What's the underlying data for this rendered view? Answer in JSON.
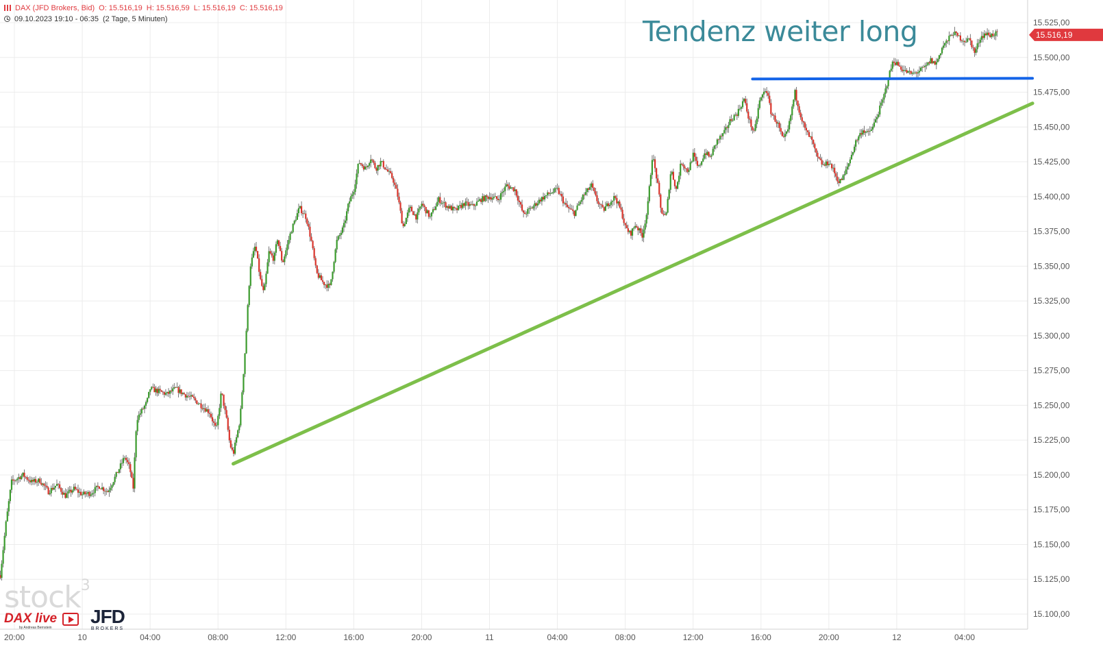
{
  "header": {
    "symbol": "DAX (JFD Brokers, Bid)",
    "open": "O: 15.516,19",
    "high": "H: 15.516,59",
    "low": "L: 15.516,19",
    "close": "C: 15.516,19",
    "range": "09.10.2023 19:10 - 06:35",
    "interval": "(2 Tage, 5 Minuten)"
  },
  "annotation": "Tendenz weiter long",
  "watermark": "stock",
  "watermark_sup": "3",
  "logos": {
    "dax_live": "DAX live",
    "dax_live_sub": "by Andreas Bernstein",
    "jfd": "JFD",
    "jfd_sub": "BROKERS"
  },
  "colors": {
    "up": "#3a9a2c",
    "down": "#d9342b",
    "trendline": "#7dbf4a",
    "resistance": "#1565e8",
    "price_badge": "#e0393e",
    "grid": "#ececec",
    "axis_text": "#555555"
  },
  "chart_data": {
    "type": "candlestick",
    "title": "DAX (JFD Brokers, Bid)",
    "interval": "5 Minuten",
    "x_tick_labels": [
      "20:00",
      "10",
      "04:00",
      "08:00",
      "12:00",
      "16:00",
      "20:00",
      "11",
      "04:00",
      "08:00",
      "12:00",
      "16:00",
      "20:00",
      "12",
      "04:00"
    ],
    "x_ticks_hour": [
      20,
      24,
      28,
      32,
      36,
      40,
      44,
      48,
      52,
      56,
      60,
      64,
      68,
      72,
      76
    ],
    "y_tick_labels": [
      "15.100,00",
      "15.125,00",
      "15.150,00",
      "15.175,00",
      "15.200,00",
      "15.225,00",
      "15.250,00",
      "15.275,00",
      "15.300,00",
      "15.325,00",
      "15.350,00",
      "15.375,00",
      "15.400,00",
      "15.425,00",
      "15.450,00",
      "15.475,00",
      "15.500,00",
      "15.525,00"
    ],
    "y_ticks": [
      15100,
      15125,
      15150,
      15175,
      15200,
      15225,
      15250,
      15275,
      15300,
      15325,
      15350,
      15375,
      15400,
      15425,
      15450,
      15475,
      15500,
      15525
    ],
    "ylim": [
      15100,
      15535
    ],
    "x_range_hours": [
      19.17,
      80.0
    ],
    "last_price": 15516.19,
    "last_price_label": "15.516,19",
    "price_path": [
      [
        19.17,
        15128
      ],
      [
        19.5,
        15165
      ],
      [
        19.83,
        15195
      ],
      [
        20.5,
        15200
      ],
      [
        21.0,
        15195
      ],
      [
        21.5,
        15196
      ],
      [
        22.0,
        15188
      ],
      [
        22.5,
        15193
      ],
      [
        23.0,
        15185
      ],
      [
        23.5,
        15190
      ],
      [
        24.0,
        15186
      ],
      [
        24.5,
        15187
      ],
      [
        25.0,
        15192
      ],
      [
        25.5,
        15188
      ],
      [
        26.0,
        15200
      ],
      [
        26.5,
        15213
      ],
      [
        26.8,
        15205
      ],
      [
        27.0,
        15190
      ],
      [
        27.2,
        15240
      ],
      [
        27.8,
        15252
      ],
      [
        28.0,
        15262
      ],
      [
        28.5,
        15260
      ],
      [
        29.0,
        15258
      ],
      [
        29.5,
        15262
      ],
      [
        30.0,
        15258
      ],
      [
        30.5,
        15255
      ],
      [
        31.0,
        15250
      ],
      [
        31.5,
        15245
      ],
      [
        31.9,
        15232
      ],
      [
        32.2,
        15260
      ],
      [
        32.5,
        15240
      ],
      [
        32.7,
        15222
      ],
      [
        32.9,
        15215
      ],
      [
        33.3,
        15240
      ],
      [
        33.6,
        15290
      ],
      [
        33.9,
        15350
      ],
      [
        34.2,
        15365
      ],
      [
        34.5,
        15340
      ],
      [
        34.7,
        15330
      ],
      [
        35.0,
        15360
      ],
      [
        35.3,
        15355
      ],
      [
        35.5,
        15370
      ],
      [
        35.8,
        15352
      ],
      [
        36.3,
        15375
      ],
      [
        36.8,
        15392
      ],
      [
        37.2,
        15385
      ],
      [
        37.5,
        15368
      ],
      [
        37.8,
        15345
      ],
      [
        38.2,
        15338
      ],
      [
        38.6,
        15335
      ],
      [
        39.0,
        15368
      ],
      [
        39.4,
        15378
      ],
      [
        39.7,
        15395
      ],
      [
        40.0,
        15405
      ],
      [
        40.3,
        15425
      ],
      [
        40.7,
        15420
      ],
      [
        41.0,
        15428
      ],
      [
        41.3,
        15420
      ],
      [
        41.6,
        15425
      ],
      [
        42.0,
        15418
      ],
      [
        42.3,
        15413
      ],
      [
        42.6,
        15400
      ],
      [
        42.9,
        15378
      ],
      [
        43.3,
        15392
      ],
      [
        43.7,
        15385
      ],
      [
        44.0,
        15395
      ],
      [
        44.5,
        15385
      ],
      [
        45.0,
        15398
      ],
      [
        45.5,
        15393
      ],
      [
        46.0,
        15390
      ],
      [
        46.5,
        15395
      ],
      [
        47.0,
        15393
      ],
      [
        47.5,
        15398
      ],
      [
        48.0,
        15400
      ],
      [
        48.5,
        15398
      ],
      [
        49.0,
        15408
      ],
      [
        49.5,
        15405
      ],
      [
        50.0,
        15387
      ],
      [
        50.5,
        15392
      ],
      [
        51.0,
        15398
      ],
      [
        51.5,
        15402
      ],
      [
        52.0,
        15405
      ],
      [
        52.5,
        15393
      ],
      [
        53.0,
        15388
      ],
      [
        53.5,
        15400
      ],
      [
        54.0,
        15408
      ],
      [
        54.3,
        15398
      ],
      [
        54.7,
        15390
      ],
      [
        55.0,
        15395
      ],
      [
        55.4,
        15400
      ],
      [
        55.8,
        15388
      ],
      [
        56.0,
        15378
      ],
      [
        56.3,
        15373
      ],
      [
        56.6,
        15380
      ],
      [
        57.0,
        15372
      ],
      [
        57.3,
        15390
      ],
      [
        57.6,
        15430
      ],
      [
        57.9,
        15410
      ],
      [
        58.1,
        15390
      ],
      [
        58.4,
        15385
      ],
      [
        58.7,
        15420
      ],
      [
        59.0,
        15405
      ],
      [
        59.3,
        15425
      ],
      [
        59.7,
        15418
      ],
      [
        60.0,
        15430
      ],
      [
        60.3,
        15420
      ],
      [
        60.7,
        15432
      ],
      [
        61.0,
        15428
      ],
      [
        61.4,
        15440
      ],
      [
        61.8,
        15445
      ],
      [
        62.2,
        15455
      ],
      [
        62.6,
        15460
      ],
      [
        63.0,
        15470
      ],
      [
        63.3,
        15455
      ],
      [
        63.6,
        15445
      ],
      [
        63.9,
        15468
      ],
      [
        64.3,
        15478
      ],
      [
        64.6,
        15460
      ],
      [
        65.0,
        15452
      ],
      [
        65.3,
        15440
      ],
      [
        65.6,
        15448
      ],
      [
        66.0,
        15475
      ],
      [
        66.3,
        15460
      ],
      [
        66.6,
        15448
      ],
      [
        67.0,
        15440
      ],
      [
        67.3,
        15428
      ],
      [
        67.7,
        15422
      ],
      [
        68.0,
        15425
      ],
      [
        68.3,
        15418
      ],
      [
        68.6,
        15410
      ],
      [
        68.9,
        15415
      ],
      [
        69.2,
        15425
      ],
      [
        69.6,
        15440
      ],
      [
        70.0,
        15448
      ],
      [
        70.3,
        15445
      ],
      [
        70.6,
        15450
      ],
      [
        70.9,
        15460
      ],
      [
        71.2,
        15470
      ],
      [
        71.5,
        15485
      ],
      [
        71.8,
        15498
      ],
      [
        72.2,
        15493
      ],
      [
        72.5,
        15490
      ],
      [
        72.9,
        15488
      ],
      [
        73.3,
        15490
      ],
      [
        73.7,
        15493
      ],
      [
        74.0,
        15498
      ],
      [
        74.3,
        15495
      ],
      [
        74.7,
        15508
      ],
      [
        75.0,
        15512
      ],
      [
        75.3,
        15518
      ],
      [
        75.6,
        15515
      ],
      [
        76.0,
        15512
      ],
      [
        76.3,
        15513
      ],
      [
        76.6,
        15503
      ],
      [
        76.9,
        15514
      ],
      [
        77.2,
        15517
      ],
      [
        77.5,
        15516
      ],
      [
        77.8,
        15517
      ],
      [
        78.0,
        15516.19
      ]
    ],
    "lines": [
      {
        "name": "trendline",
        "from": [
          32.9,
          15208
        ],
        "to": [
          80.0,
          15467
        ]
      },
      {
        "name": "resistance",
        "from": [
          63.5,
          15484.5
        ],
        "to": [
          80.0,
          15485
        ]
      }
    ]
  }
}
